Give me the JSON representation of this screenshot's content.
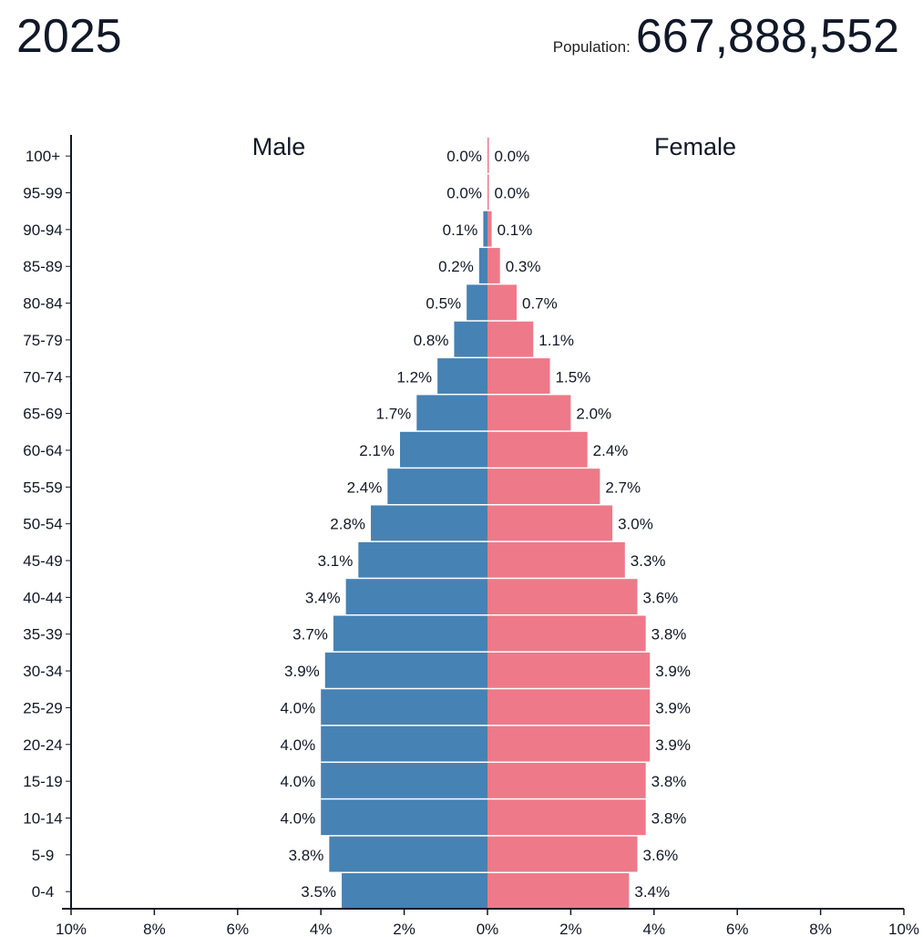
{
  "header": {
    "year": "2025",
    "population_label": "Population:",
    "population_value": "667,888,552"
  },
  "colors": {
    "male": "#4682b4",
    "female": "#ee7989",
    "axis": "#111827",
    "text": "#111827"
  },
  "chart_data": {
    "type": "bar",
    "orientation": "horizontal",
    "title": "2025",
    "categories": [
      "100+",
      "95-99",
      "90-94",
      "85-89",
      "80-84",
      "75-79",
      "70-74",
      "65-69",
      "60-64",
      "55-59",
      "50-54",
      "45-49",
      "40-44",
      "35-39",
      "30-34",
      "25-29",
      "20-24",
      "15-19",
      "10-14",
      "5-9",
      "0-4"
    ],
    "series": [
      {
        "name": "Male",
        "color": "#4682b4",
        "values": [
          0.0,
          0.0,
          0.1,
          0.2,
          0.5,
          0.8,
          1.2,
          1.7,
          2.1,
          2.4,
          2.8,
          3.1,
          3.4,
          3.7,
          3.9,
          4.0,
          4.0,
          4.0,
          4.0,
          3.8,
          3.5
        ],
        "labels": [
          "0.0%",
          "0.0%",
          "0.1%",
          "0.2%",
          "0.5%",
          "0.8%",
          "1.2%",
          "1.7%",
          "2.1%",
          "2.4%",
          "2.8%",
          "3.1%",
          "3.4%",
          "3.7%",
          "3.9%",
          "4.0%",
          "4.0%",
          "4.0%",
          "4.0%",
          "3.8%",
          "3.5%"
        ]
      },
      {
        "name": "Female",
        "color": "#ee7989",
        "values": [
          0.0,
          0.0,
          0.1,
          0.3,
          0.7,
          1.1,
          1.5,
          2.0,
          2.4,
          2.7,
          3.0,
          3.3,
          3.6,
          3.8,
          3.9,
          3.9,
          3.9,
          3.8,
          3.8,
          3.6,
          3.4
        ],
        "labels": [
          "0.0%",
          "0.0%",
          "0.1%",
          "0.3%",
          "0.7%",
          "1.1%",
          "1.5%",
          "2.0%",
          "2.4%",
          "2.7%",
          "3.0%",
          "3.3%",
          "3.6%",
          "3.8%",
          "3.9%",
          "3.9%",
          "3.9%",
          "3.8%",
          "3.8%",
          "3.6%",
          "3.4%"
        ]
      }
    ],
    "xlim": [
      -10,
      10
    ],
    "x_ticks": [
      "10%",
      "8%",
      "6%",
      "4%",
      "2%",
      "0%",
      "2%",
      "4%",
      "6%",
      "8%",
      "10%"
    ],
    "x_tick_values": [
      -10,
      -8,
      -6,
      -4,
      -2,
      0,
      2,
      4,
      6,
      8,
      10
    ],
    "grid": false,
    "legend": "side labels"
  }
}
